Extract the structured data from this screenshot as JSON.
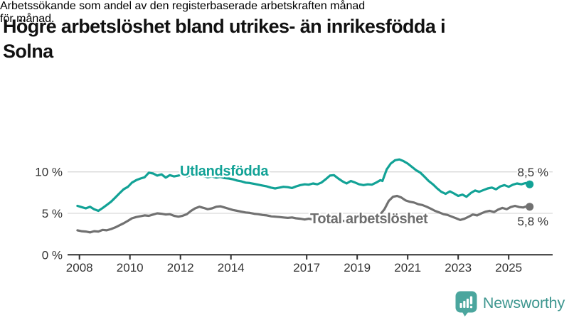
{
  "header": {
    "title_lines": [
      "Högre arbetslöshet bland utrikes- än inrikesfödda i",
      "Solna"
    ],
    "subtitle_lines": [
      "Arbetssökande som andel av den registerbaserade arbetskraften månad",
      "för månad."
    ]
  },
  "branding": {
    "name": "Newsworthy",
    "icon": "newsworthy-bar-chart-speech-bubble-icon",
    "icon_color": "#4ba69e",
    "text_color": "#3d968f"
  },
  "chart_data": {
    "type": "line",
    "title": "Högre arbetslöshet bland utrikes- än inrikesfödda i Solna",
    "subtitle": "Arbetssökande som andel av den registerbaserade arbetskraften månad för månad.",
    "unit": "%",
    "grid": "horizontal",
    "legend_position": "inline-labels",
    "x_range": [
      2007.85,
      2026.1
    ],
    "y_range": [
      0,
      12.8
    ],
    "x_ticks": [
      2008,
      2010,
      2012,
      2014,
      2017,
      2019,
      2021,
      2023,
      2025
    ],
    "y_ticks": [
      {
        "value": 0,
        "label": "0 %"
      },
      {
        "value": 5,
        "label": "5 %"
      },
      {
        "value": 10,
        "label": "10 %"
      }
    ],
    "series": [
      {
        "name": "Utlandsfödda",
        "color": "#12a296",
        "end_label": "8,5 %",
        "end_value": 8.5,
        "points": [
          [
            2007.92,
            5.9
          ],
          [
            2008.08,
            5.75
          ],
          [
            2008.25,
            5.6
          ],
          [
            2008.42,
            5.8
          ],
          [
            2008.58,
            5.5
          ],
          [
            2008.75,
            5.3
          ],
          [
            2008.92,
            5.65
          ],
          [
            2009.08,
            6.0
          ],
          [
            2009.25,
            6.4
          ],
          [
            2009.42,
            6.9
          ],
          [
            2009.58,
            7.4
          ],
          [
            2009.75,
            7.9
          ],
          [
            2009.92,
            8.2
          ],
          [
            2010.08,
            8.7
          ],
          [
            2010.25,
            9.0
          ],
          [
            2010.42,
            9.2
          ],
          [
            2010.58,
            9.35
          ],
          [
            2010.75,
            9.9
          ],
          [
            2010.92,
            9.8
          ],
          [
            2011.08,
            9.55
          ],
          [
            2011.25,
            9.7
          ],
          [
            2011.42,
            9.3
          ],
          [
            2011.58,
            9.6
          ],
          [
            2011.75,
            9.45
          ],
          [
            2011.92,
            9.55
          ],
          [
            2012.08,
            9.7
          ],
          [
            2012.25,
            9.45
          ],
          [
            2012.42,
            9.6
          ],
          [
            2012.58,
            9.5
          ],
          [
            2012.75,
            9.65
          ],
          [
            2012.92,
            9.5
          ],
          [
            2013.08,
            9.35
          ],
          [
            2013.25,
            9.45
          ],
          [
            2013.42,
            9.3
          ],
          [
            2013.58,
            9.4
          ],
          [
            2013.75,
            9.25
          ],
          [
            2013.92,
            9.2
          ],
          [
            2014.08,
            9.1
          ],
          [
            2014.25,
            8.95
          ],
          [
            2014.42,
            8.85
          ],
          [
            2014.58,
            8.7
          ],
          [
            2014.75,
            8.65
          ],
          [
            2014.92,
            8.55
          ],
          [
            2015.08,
            8.45
          ],
          [
            2015.25,
            8.35
          ],
          [
            2015.42,
            8.25
          ],
          [
            2015.58,
            8.1
          ],
          [
            2015.75,
            8.0
          ],
          [
            2015.92,
            8.1
          ],
          [
            2016.08,
            8.2
          ],
          [
            2016.25,
            8.15
          ],
          [
            2016.42,
            8.05
          ],
          [
            2016.58,
            8.25
          ],
          [
            2016.75,
            8.4
          ],
          [
            2016.92,
            8.5
          ],
          [
            2017.08,
            8.45
          ],
          [
            2017.25,
            8.6
          ],
          [
            2017.42,
            8.5
          ],
          [
            2017.58,
            8.7
          ],
          [
            2017.75,
            9.1
          ],
          [
            2017.92,
            9.55
          ],
          [
            2018.08,
            9.6
          ],
          [
            2018.25,
            9.2
          ],
          [
            2018.42,
            8.85
          ],
          [
            2018.58,
            8.6
          ],
          [
            2018.75,
            8.9
          ],
          [
            2018.92,
            8.7
          ],
          [
            2019.08,
            8.5
          ],
          [
            2019.25,
            8.4
          ],
          [
            2019.42,
            8.5
          ],
          [
            2019.58,
            8.45
          ],
          [
            2019.75,
            8.7
          ],
          [
            2019.92,
            9.0
          ],
          [
            2020.0,
            8.9
          ],
          [
            2020.17,
            10.3
          ],
          [
            2020.33,
            11.0
          ],
          [
            2020.5,
            11.4
          ],
          [
            2020.67,
            11.5
          ],
          [
            2020.83,
            11.3
          ],
          [
            2021.0,
            11.0
          ],
          [
            2021.17,
            10.6
          ],
          [
            2021.33,
            10.2
          ],
          [
            2021.5,
            9.9
          ],
          [
            2021.67,
            9.4
          ],
          [
            2021.83,
            8.9
          ],
          [
            2022.0,
            8.5
          ],
          [
            2022.17,
            8.0
          ],
          [
            2022.33,
            7.6
          ],
          [
            2022.5,
            7.35
          ],
          [
            2022.67,
            7.65
          ],
          [
            2022.83,
            7.4
          ],
          [
            2023.0,
            7.1
          ],
          [
            2023.17,
            7.25
          ],
          [
            2023.33,
            7.0
          ],
          [
            2023.5,
            7.45
          ],
          [
            2023.67,
            7.75
          ],
          [
            2023.83,
            7.6
          ],
          [
            2024.0,
            7.8
          ],
          [
            2024.17,
            8.0
          ],
          [
            2024.33,
            8.1
          ],
          [
            2024.5,
            7.9
          ],
          [
            2024.67,
            8.25
          ],
          [
            2024.83,
            8.4
          ],
          [
            2025.0,
            8.2
          ],
          [
            2025.17,
            8.45
          ],
          [
            2025.33,
            8.6
          ],
          [
            2025.5,
            8.5
          ],
          [
            2025.67,
            8.65
          ],
          [
            2025.83,
            8.5
          ]
        ]
      },
      {
        "name": "Total arbetslöshet",
        "color": "#717171",
        "end_label": "5,8 %",
        "end_value": 5.8,
        "points": [
          [
            2007.92,
            2.95
          ],
          [
            2008.08,
            2.85
          ],
          [
            2008.25,
            2.8
          ],
          [
            2008.42,
            2.7
          ],
          [
            2008.58,
            2.85
          ],
          [
            2008.75,
            2.8
          ],
          [
            2008.92,
            3.0
          ],
          [
            2009.08,
            2.95
          ],
          [
            2009.25,
            3.1
          ],
          [
            2009.42,
            3.3
          ],
          [
            2009.58,
            3.55
          ],
          [
            2009.75,
            3.8
          ],
          [
            2009.92,
            4.1
          ],
          [
            2010.08,
            4.4
          ],
          [
            2010.25,
            4.55
          ],
          [
            2010.42,
            4.65
          ],
          [
            2010.58,
            4.75
          ],
          [
            2010.75,
            4.7
          ],
          [
            2010.92,
            4.85
          ],
          [
            2011.08,
            5.0
          ],
          [
            2011.25,
            4.95
          ],
          [
            2011.42,
            4.85
          ],
          [
            2011.58,
            4.9
          ],
          [
            2011.75,
            4.7
          ],
          [
            2011.92,
            4.6
          ],
          [
            2012.08,
            4.7
          ],
          [
            2012.25,
            4.9
          ],
          [
            2012.42,
            5.3
          ],
          [
            2012.58,
            5.6
          ],
          [
            2012.75,
            5.8
          ],
          [
            2012.92,
            5.65
          ],
          [
            2013.08,
            5.5
          ],
          [
            2013.25,
            5.6
          ],
          [
            2013.42,
            5.8
          ],
          [
            2013.58,
            5.85
          ],
          [
            2013.75,
            5.7
          ],
          [
            2013.92,
            5.55
          ],
          [
            2014.08,
            5.4
          ],
          [
            2014.25,
            5.3
          ],
          [
            2014.42,
            5.2
          ],
          [
            2014.58,
            5.1
          ],
          [
            2014.75,
            5.05
          ],
          [
            2014.92,
            4.95
          ],
          [
            2015.08,
            4.9
          ],
          [
            2015.25,
            4.8
          ],
          [
            2015.42,
            4.75
          ],
          [
            2015.58,
            4.65
          ],
          [
            2015.75,
            4.6
          ],
          [
            2015.92,
            4.55
          ],
          [
            2016.08,
            4.5
          ],
          [
            2016.25,
            4.45
          ],
          [
            2016.42,
            4.5
          ],
          [
            2016.58,
            4.4
          ],
          [
            2016.75,
            4.35
          ],
          [
            2016.92,
            4.25
          ],
          [
            2017.08,
            4.35
          ],
          [
            2017.25,
            4.25
          ],
          [
            2017.42,
            4.2
          ],
          [
            2017.58,
            4.15
          ],
          [
            2017.75,
            4.2
          ],
          [
            2017.92,
            4.1
          ],
          [
            2018.08,
            4.15
          ],
          [
            2018.25,
            4.05
          ],
          [
            2018.42,
            4.1
          ],
          [
            2018.58,
            4.05
          ],
          [
            2018.75,
            4.15
          ],
          [
            2018.92,
            4.2
          ],
          [
            2019.08,
            4.15
          ],
          [
            2019.25,
            4.25
          ],
          [
            2019.42,
            4.3
          ],
          [
            2019.58,
            4.35
          ],
          [
            2019.75,
            4.5
          ],
          [
            2019.92,
            4.9
          ],
          [
            2020.08,
            5.5
          ],
          [
            2020.25,
            6.5
          ],
          [
            2020.42,
            7.0
          ],
          [
            2020.58,
            7.1
          ],
          [
            2020.75,
            6.9
          ],
          [
            2020.92,
            6.55
          ],
          [
            2021.08,
            6.4
          ],
          [
            2021.25,
            6.3
          ],
          [
            2021.42,
            6.1
          ],
          [
            2021.58,
            6.0
          ],
          [
            2021.75,
            5.8
          ],
          [
            2021.92,
            5.55
          ],
          [
            2022.08,
            5.3
          ],
          [
            2022.25,
            5.1
          ],
          [
            2022.42,
            4.9
          ],
          [
            2022.58,
            4.8
          ],
          [
            2022.75,
            4.6
          ],
          [
            2022.92,
            4.4
          ],
          [
            2023.08,
            4.2
          ],
          [
            2023.25,
            4.35
          ],
          [
            2023.42,
            4.6
          ],
          [
            2023.58,
            4.85
          ],
          [
            2023.75,
            4.75
          ],
          [
            2023.92,
            5.0
          ],
          [
            2024.08,
            5.2
          ],
          [
            2024.25,
            5.3
          ],
          [
            2024.42,
            5.15
          ],
          [
            2024.58,
            5.45
          ],
          [
            2024.75,
            5.65
          ],
          [
            2024.92,
            5.5
          ],
          [
            2025.08,
            5.75
          ],
          [
            2025.25,
            5.9
          ],
          [
            2025.42,
            5.75
          ],
          [
            2025.58,
            5.7
          ],
          [
            2025.75,
            5.9
          ],
          [
            2025.83,
            5.8
          ]
        ]
      }
    ]
  }
}
